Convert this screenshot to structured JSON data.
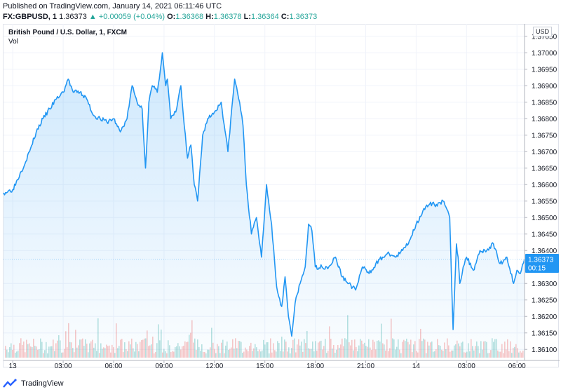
{
  "header": {
    "published": "Published on TradingView.com, January 14, 2021 06:11:46 UTC",
    "symbol": "FX:GBPUSD, 1",
    "last": "1.36373",
    "change": "+0.00059 (+0.04%)",
    "o_label": "O:",
    "o_val": "1.36368",
    "h_label": "H:",
    "h_val": "1.36378",
    "l_label": "L:",
    "l_val": "1.36364",
    "c_label": "C:",
    "c_val": "1.36373"
  },
  "legend": {
    "title": "British Pound / U.S. Dollar, 1, FXCM",
    "vol": "Vol"
  },
  "currency": "USD",
  "price_tag": "1.36373",
  "countdown": "00:15",
  "branding": "TradingView",
  "colors": {
    "line": "#2196f3",
    "fill": "#2196f3",
    "up": "#26a69a",
    "down": "#ef5350",
    "grid": "#f0f3fa"
  },
  "chart_data": {
    "type": "area",
    "title": "British Pound / U.S. Dollar, 1, FXCM",
    "ylim": [
      1.36075,
      1.37075
    ],
    "y_ticks": [
      "1.37050",
      "1.37000",
      "1.36950",
      "1.36900",
      "1.36850",
      "1.36800",
      "1.36750",
      "1.36700",
      "1.36650",
      "1.36600",
      "1.36550",
      "1.36500",
      "1.36450",
      "1.36400",
      "1.36300",
      "1.36250",
      "1.36200",
      "1.36150",
      "1.36100"
    ],
    "x_ticks": [
      "13",
      "03:00",
      "06:00",
      "09:00",
      "12:00",
      "15:00",
      "18:00",
      "21:00",
      "14",
      "03:00",
      "06:00"
    ],
    "x_tick_hours": [
      0,
      3,
      6,
      9,
      12,
      15,
      18,
      21,
      24,
      27,
      30
    ],
    "x_range_hours": [
      -0.55,
      30.45
    ],
    "grid": true,
    "series": [
      {
        "hours": [
          -0.55,
          0.0,
          0.5,
          1.0,
          1.4,
          1.8,
          2.2,
          2.6,
          3.0,
          3.3,
          3.6,
          4.0,
          4.4,
          4.8,
          5.2,
          5.6,
          6.0,
          6.4,
          6.8,
          7.1,
          7.4,
          7.7,
          7.9,
          8.1,
          8.3,
          8.6,
          8.9,
          9.0,
          9.1,
          9.2,
          9.4,
          9.7,
          10.0,
          10.2,
          10.4,
          10.6,
          10.8,
          11.0,
          11.3,
          11.6,
          12.0,
          12.4,
          12.8,
          13.2,
          13.5,
          13.7,
          13.9,
          14.2,
          14.5,
          14.8,
          15.1,
          15.4,
          15.7,
          16.0,
          16.2,
          16.4,
          16.6,
          16.8,
          17.1,
          17.4,
          17.6,
          17.8,
          18.0,
          18.4,
          18.8,
          19.2,
          19.6,
          20.0,
          20.4,
          20.8,
          21.2,
          21.6,
          22.0,
          22.4,
          22.8,
          23.2,
          23.6,
          24.0,
          24.4,
          24.8,
          25.2,
          25.6,
          26.0,
          26.2,
          26.4,
          26.5,
          26.6,
          26.8,
          27.0,
          27.4,
          27.8,
          28.2,
          28.6,
          29.0,
          29.4,
          29.8,
          30.0,
          30.2,
          30.45
        ],
        "values": [
          1.36575,
          1.36585,
          1.3664,
          1.367,
          1.3676,
          1.368,
          1.3683,
          1.3686,
          1.3688,
          1.3692,
          1.3688,
          1.3688,
          1.3686,
          1.3681,
          1.368,
          1.3679,
          1.368,
          1.3676,
          1.368,
          1.369,
          1.3685,
          1.3683,
          1.3665,
          1.3685,
          1.369,
          1.3688,
          1.37,
          1.3695,
          1.369,
          1.3692,
          1.368,
          1.3682,
          1.369,
          1.3678,
          1.3668,
          1.3672,
          1.366,
          1.3655,
          1.3675,
          1.368,
          1.3682,
          1.3685,
          1.367,
          1.3692,
          1.3685,
          1.3678,
          1.366,
          1.3645,
          1.365,
          1.3638,
          1.366,
          1.3648,
          1.3629,
          1.3623,
          1.3632,
          1.362,
          1.3614,
          1.3624,
          1.363,
          1.3635,
          1.3648,
          1.3646,
          1.3635,
          1.3635,
          1.3635,
          1.3638,
          1.3632,
          1.363,
          1.3628,
          1.3635,
          1.3633,
          1.3636,
          1.3638,
          1.3639,
          1.3638,
          1.364,
          1.3643,
          1.3648,
          1.3652,
          1.3654,
          1.3654,
          1.3655,
          1.365,
          1.3616,
          1.3642,
          1.3638,
          1.363,
          1.3635,
          1.3638,
          1.3634,
          1.364,
          1.364,
          1.3642,
          1.3636,
          1.3638,
          1.363,
          1.3634,
          1.3633,
          1.36373
        ]
      }
    ],
    "volume_note": "volume histogram bars (green/red) at bottom"
  }
}
